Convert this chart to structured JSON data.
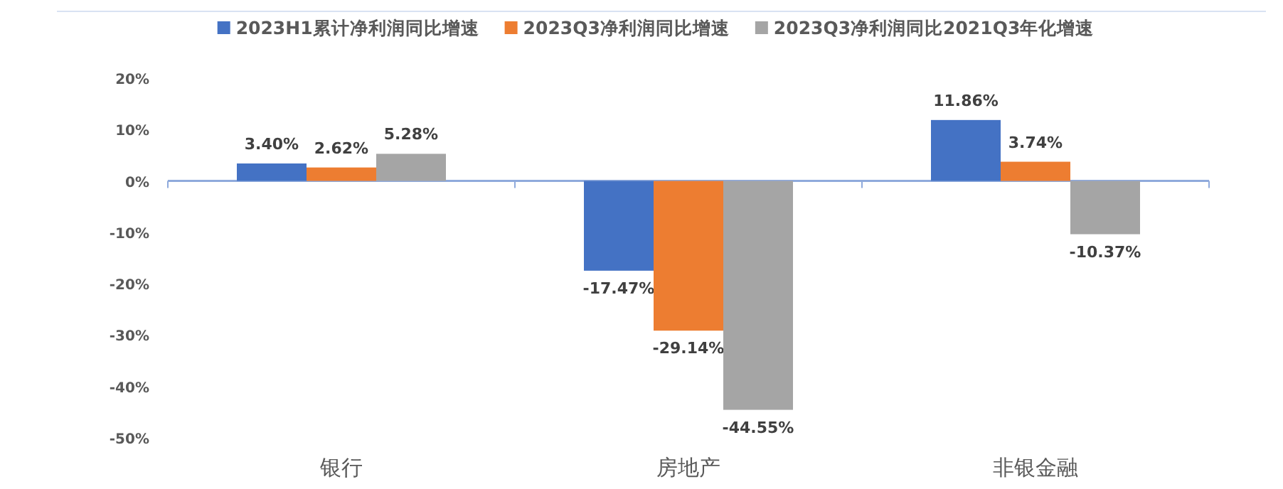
{
  "chart_data": {
    "type": "bar",
    "categories": [
      "银行",
      "房地产",
      "非银金融"
    ],
    "series": [
      {
        "name": "2023H1累计净利润同比增速",
        "color": "#4472c4",
        "values": [
          3.4,
          -17.47,
          11.86
        ],
        "value_labels": [
          "3.40%",
          "-17.47%",
          "11.86%"
        ]
      },
      {
        "name": "2023Q3净利润同比增速",
        "color": "#ed7d31",
        "values": [
          2.62,
          -29.14,
          3.74
        ],
        "value_labels": [
          "2.62%",
          "-29.14%",
          "3.74%"
        ]
      },
      {
        "name": "2023Q3净利润同比2021Q3年化增速",
        "color": "#a5a5a5",
        "values": [
          5.28,
          -44.55,
          -10.37
        ],
        "value_labels": [
          "5.28%",
          "-44.55%",
          "-10.37%"
        ]
      }
    ],
    "ylim": [
      -50,
      20
    ],
    "yticks": [
      {
        "value": -50,
        "label": "-50%"
      },
      {
        "value": -40,
        "label": "-40%"
      },
      {
        "value": -30,
        "label": "-30%"
      },
      {
        "value": -20,
        "label": "-20%"
      },
      {
        "value": -10,
        "label": "-10%"
      },
      {
        "value": 0,
        "label": "0%"
      },
      {
        "value": 10,
        "label": "10%"
      },
      {
        "value": 20,
        "label": "20%"
      }
    ],
    "ref_lines": [
      {
        "axis": "y",
        "value": 0,
        "color": "#8faadc"
      }
    ],
    "legend": "top"
  }
}
